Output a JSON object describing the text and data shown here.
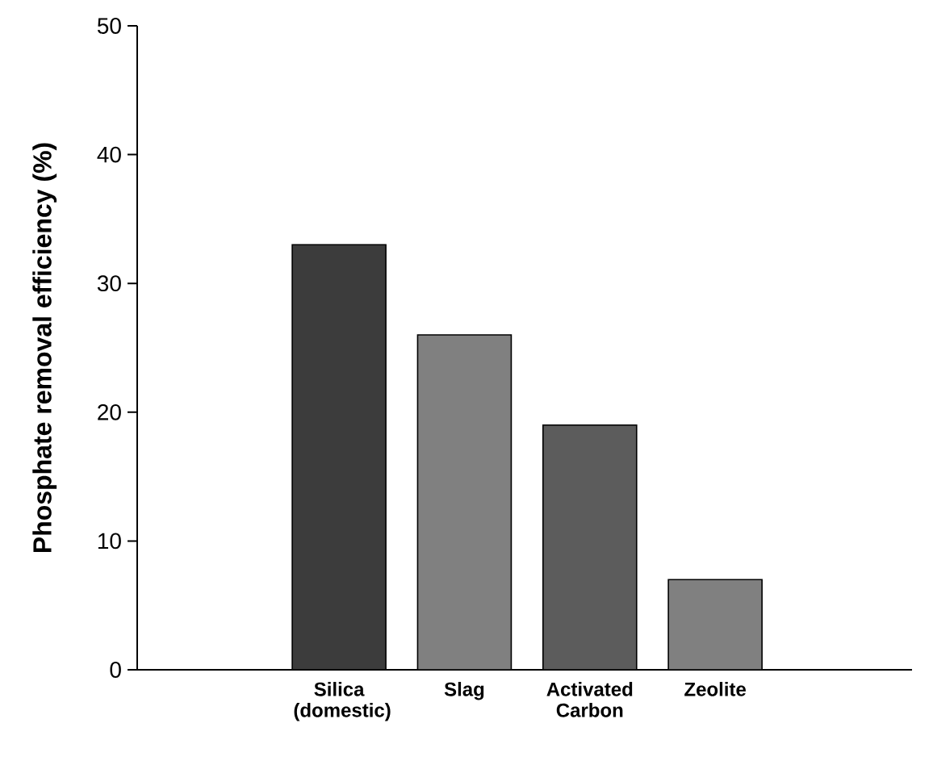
{
  "chart_data": {
    "type": "bar",
    "ylabel": "Phosphate removal efficiency (%)",
    "categories": [
      "Silica (domestic)",
      "Slag",
      "Activated Carbon",
      "Zeolite"
    ],
    "values": [
      33,
      26,
      19,
      7
    ],
    "colors": [
      "#3c3c3c",
      "#808080",
      "#5c5c5c",
      "#808080"
    ],
    "ylim": [
      0,
      50
    ],
    "yticks": [
      0,
      10,
      20,
      30,
      40,
      50
    ],
    "grid": false
  }
}
